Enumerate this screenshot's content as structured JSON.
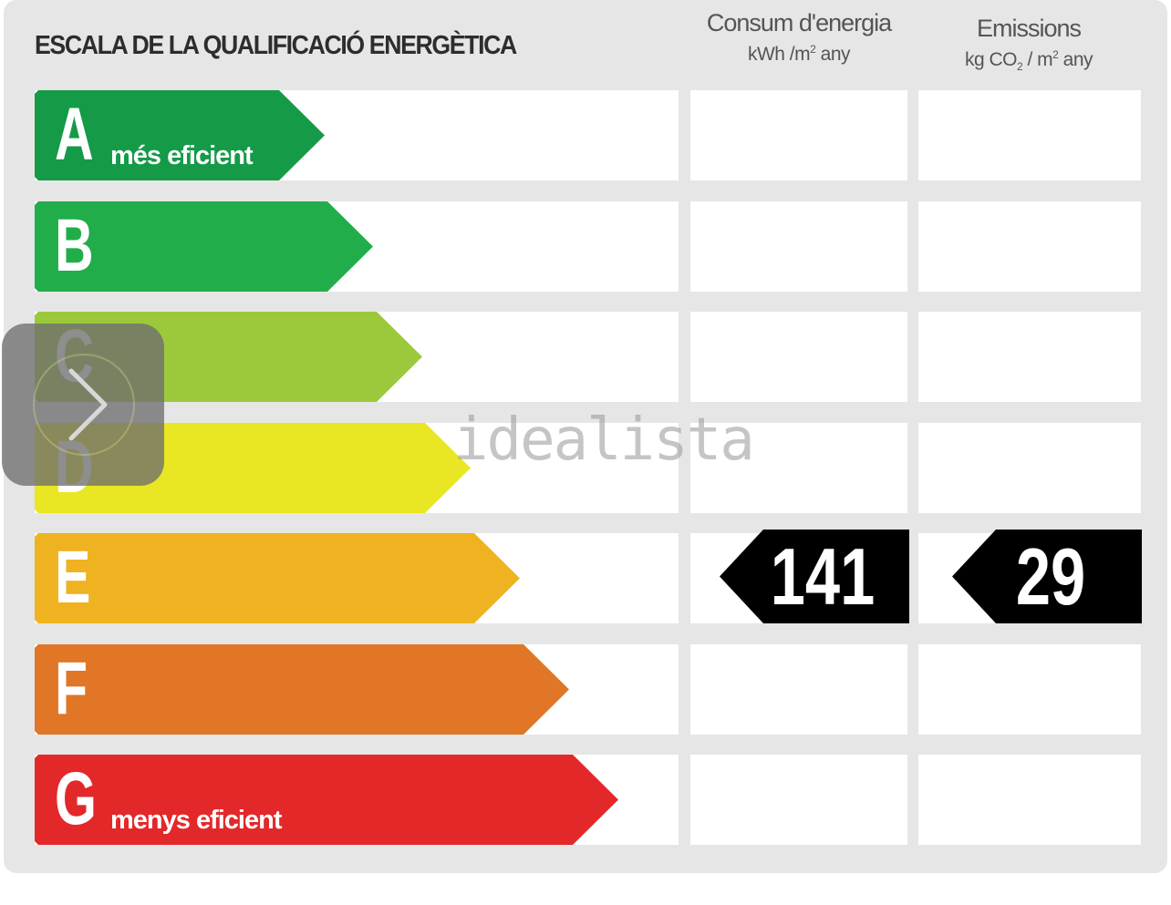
{
  "title": "ESCALA DE LA QUALIFICACIÓ ENERGÈTICA",
  "columns": {
    "energy": {
      "title": "Consum d'energia",
      "unit_prefix": "kWh /m",
      "unit_sup": "2",
      "unit_suffix": " any"
    },
    "emissions": {
      "title": "Emissions",
      "unit_prefix": "kg CO",
      "unit_sub": "2",
      "unit_mid": " / m",
      "unit_sup": "2",
      "unit_suffix": " any"
    }
  },
  "ratings": [
    {
      "letter": "A",
      "label": "més eficient",
      "color": "#159a48"
    },
    {
      "letter": "B",
      "label": "",
      "color": "#22ad4b"
    },
    {
      "letter": "C",
      "label": "",
      "color": "#9cc93c"
    },
    {
      "letter": "D",
      "label": "",
      "color": "#e9e623"
    },
    {
      "letter": "E",
      "label": "",
      "color": "#efb321"
    },
    {
      "letter": "F",
      "label": "",
      "color": "#e07626"
    },
    {
      "letter": "G",
      "label": "menys eficient",
      "color": "#e3282a"
    }
  ],
  "current": {
    "rating": "E",
    "energy_value": "141",
    "emissions_value": "29"
  },
  "watermark": "idealista",
  "overlay_icon": "chevron-right-icon"
}
